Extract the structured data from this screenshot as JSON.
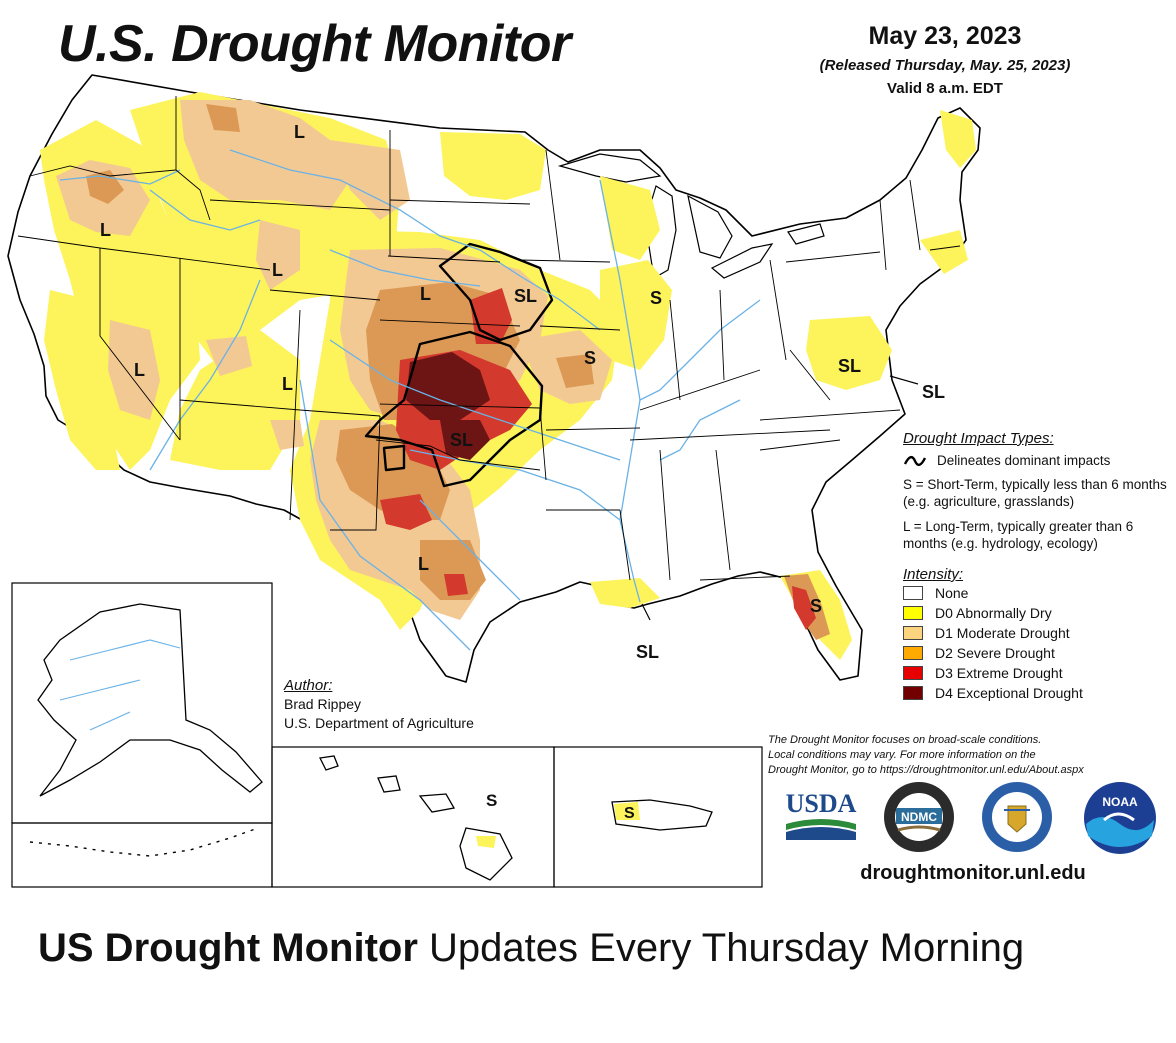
{
  "map": {
    "title": "U.S. Drought Monitor",
    "date": "May 23, 2023",
    "released": "(Released Thursday, May. 25, 2023)",
    "valid": "Valid 8 a.m. EDT",
    "impact_labels": {
      "pnw": "L",
      "montana": "L",
      "idaho": "L",
      "nevada": "L",
      "arizona": "L",
      "nebraska": "L",
      "iowa": "SL",
      "missouri": "S",
      "illinois": "S",
      "kansas": "SL",
      "texas": "L",
      "louisiana": "SL",
      "virginia_inner": "SL",
      "virginia_outer": "SL",
      "florida": "S",
      "hawaii": "S",
      "puerto_rico": "S"
    }
  },
  "legend": {
    "impact_heading": "Drought Impact Types:",
    "delineates": "Delineates dominant impacts",
    "short_term": "S = Short-Term, typically less than 6 months (e.g. agriculture, grasslands)",
    "long_term": "L = Long-Term, typically greater than 6 months (e.g. hydrology, ecology)",
    "intensity_heading": "Intensity:",
    "categories": [
      {
        "label": "None",
        "color": "#ffffff"
      },
      {
        "label": "D0 Abnormally Dry",
        "color": "#ffff00"
      },
      {
        "label": "D1 Moderate Drought",
        "color": "#fcd37f"
      },
      {
        "label": "D2 Severe Drought",
        "color": "#ffaa00"
      },
      {
        "label": "D3 Extreme Drought",
        "color": "#e60000"
      },
      {
        "label": "D4 Exceptional Drought",
        "color": "#730000"
      }
    ]
  },
  "author": {
    "heading": "Author:",
    "name": "Brad Rippey",
    "org": "U.S. Department of Agriculture"
  },
  "disclaimer": {
    "line1": "The Drought Monitor focuses on broad-scale conditions.",
    "line2": "Local conditions may vary. For more information on the",
    "line3": "Drought Monitor, go to https://droughtmonitor.unl.edu/About.aspx"
  },
  "logos": {
    "usda": "USDA",
    "ndmc": "NDMC",
    "noaa": "NOAA"
  },
  "site_url": "droughtmonitor.unl.edu",
  "caption": {
    "strong": "US Drought Monitor",
    "rest": " Updates Every Thursday Morning"
  },
  "colors": {
    "d0": "#fdf35a",
    "d1": "#f3c993",
    "d2": "#dc9955",
    "d3": "#d3392c",
    "d4": "#6d1515",
    "water": "#6ab2e6"
  }
}
